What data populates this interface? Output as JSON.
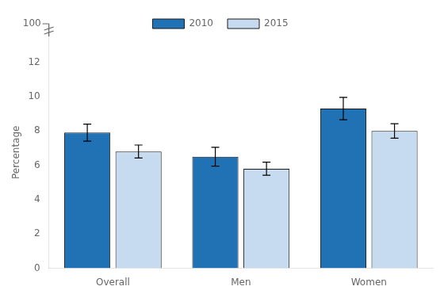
{
  "chart_data": {
    "type": "bar",
    "categories": [
      "Overall",
      "Men",
      "Women"
    ],
    "series": [
      {
        "name": "2010",
        "color": "#2171b5",
        "values": [
          7.9,
          6.5,
          9.3
        ],
        "errors": [
          0.5,
          0.55,
          0.65
        ]
      },
      {
        "name": "2015",
        "color": "#c6dbef",
        "values": [
          6.8,
          5.8,
          8.0
        ],
        "errors": [
          0.38,
          0.38,
          0.42
        ]
      }
    ],
    "ylabel": "Percentage",
    "ylim": [
      0,
      13.5
    ],
    "yticks": [
      0,
      2,
      4,
      6,
      8,
      10,
      12
    ],
    "annotations": [
      "100"
    ],
    "grid": false,
    "legend": "upper left"
  }
}
